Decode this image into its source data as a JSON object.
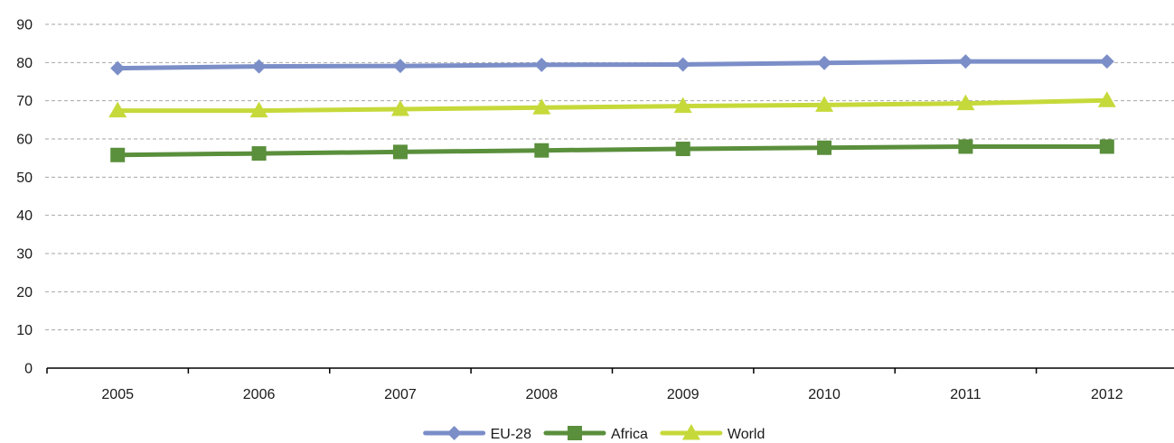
{
  "chart_data": {
    "type": "line",
    "title": "",
    "xlabel": "",
    "ylabel": "",
    "categories": [
      "2005",
      "2006",
      "2007",
      "2008",
      "2009",
      "2010",
      "2011",
      "2012"
    ],
    "ylim": [
      0,
      90
    ],
    "yticks": [
      0,
      10,
      20,
      30,
      40,
      50,
      60,
      70,
      80,
      90
    ],
    "grid": true,
    "legend": "bottom-center",
    "series": [
      {
        "name": "EU-28",
        "color": "#7b8ec8",
        "marker": "diamond",
        "values": [
          78.5,
          79.0,
          79.1,
          79.4,
          79.5,
          79.9,
          80.3,
          80.3
        ]
      },
      {
        "name": "Africa",
        "color": "#5a8f3c",
        "marker": "square",
        "values": [
          55.8,
          56.2,
          56.6,
          57.0,
          57.4,
          57.7,
          58.0,
          58.0
        ]
      },
      {
        "name": "World",
        "color": "#c6d93a",
        "marker": "triangle",
        "values": [
          67.4,
          67.4,
          67.8,
          68.2,
          68.6,
          68.9,
          69.3,
          70.1
        ]
      }
    ]
  }
}
